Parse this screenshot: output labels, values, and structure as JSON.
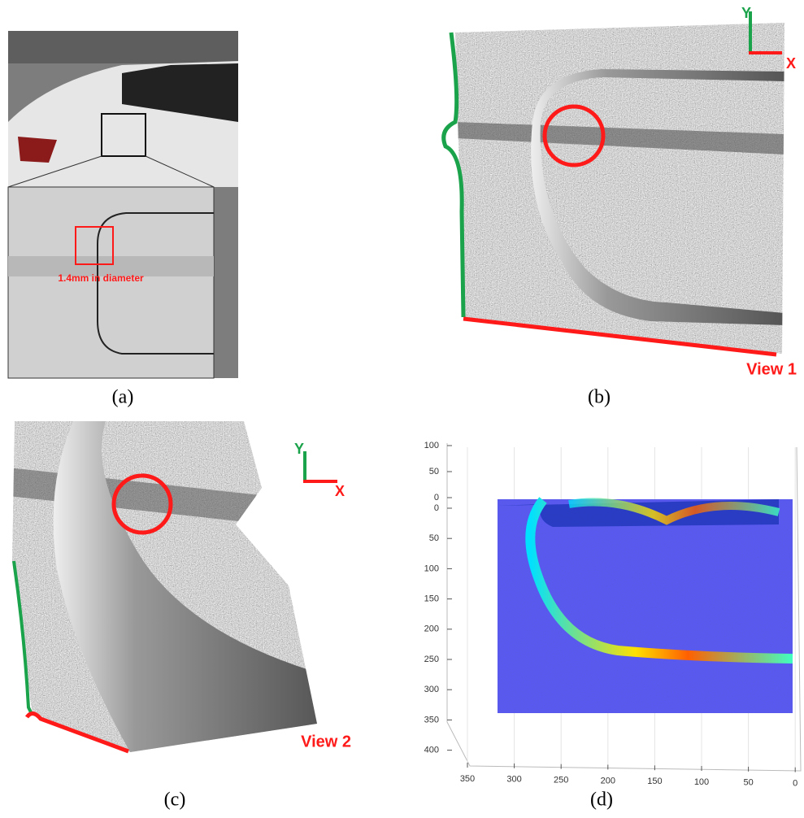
{
  "panels": [
    {
      "label": "(a)",
      "annotation": "1.4mm in diameter"
    },
    {
      "label": "(b)",
      "axes": {
        "y": "Y",
        "x": "X"
      },
      "view": "View 1"
    },
    {
      "label": "(c)",
      "axes": {
        "y": "Y",
        "x": "X"
      },
      "view": "View 2"
    },
    {
      "label": "(d)",
      "z_ticks": [
        100,
        50,
        0
      ],
      "y_ticks": [
        0,
        50,
        100,
        150,
        200,
        250,
        300,
        350,
        400
      ],
      "x_ticks": [
        350,
        300,
        250,
        200,
        150,
        100,
        50,
        0
      ]
    }
  ]
}
